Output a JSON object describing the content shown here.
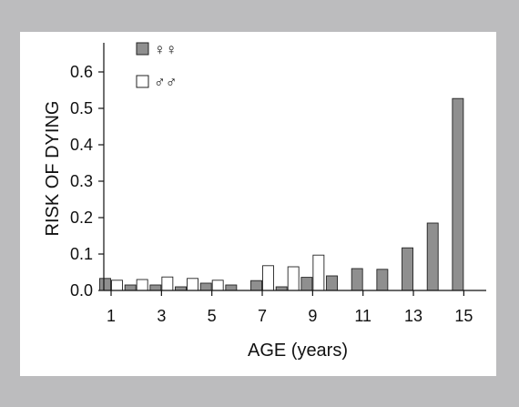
{
  "chart_data": {
    "type": "bar",
    "title": "",
    "xlabel": "AGE (years)",
    "ylabel": "RISK OF DYING",
    "ylim": [
      0,
      0.68
    ],
    "grid": false,
    "legend_position": "top-left",
    "categories": [
      1,
      2,
      3,
      4,
      5,
      6,
      7,
      8,
      9,
      10,
      11,
      12,
      13,
      14,
      15,
      16
    ],
    "x_tick_labels": [
      "1",
      "3",
      "5",
      "7",
      "9",
      "11",
      "13",
      "15"
    ],
    "x_tick_values": [
      1,
      3,
      5,
      7,
      9,
      11,
      13,
      15
    ],
    "y_tick_labels": [
      "0.0",
      "0.1",
      "0.2",
      "0.3",
      "0.4",
      "0.5",
      "0.6"
    ],
    "y_tick_values": [
      0,
      0.1,
      0.2,
      0.3,
      0.4,
      0.5,
      0.6
    ],
    "series": [
      {
        "name": "♀♀",
        "color": "#8f8f8f",
        "values": [
          0.033,
          0.015,
          0.015,
          0.01,
          0.02,
          0.015,
          0.027,
          0.01,
          0.036,
          0.04,
          0.06,
          0.058,
          0.117,
          0.185,
          0.527,
          null
        ]
      },
      {
        "name": "♂♂",
        "color": "#ffffff",
        "values": [
          0.028,
          0.03,
          0.037,
          0.033,
          0.028,
          null,
          0.068,
          0.065,
          0.097,
          null,
          null,
          null,
          null,
          null,
          null,
          null
        ]
      }
    ]
  }
}
